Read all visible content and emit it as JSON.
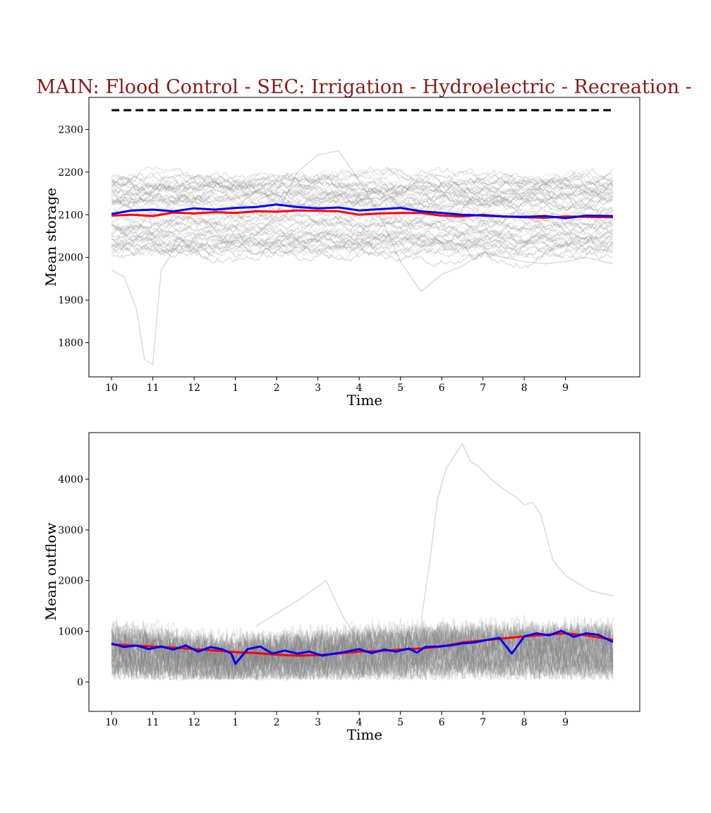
{
  "figure": {
    "title": "MAIN: Flood Control - SEC: Irrigation - Hydroelectric - Recreation -"
  },
  "colors": {
    "title": "#8b1a1a",
    "ensemble": "#808080",
    "mean_line": "#ff0000",
    "highlight_line": "#0000ff",
    "capacity_line": "#000000"
  },
  "chart_data": [
    {
      "type": "line",
      "xlabel": "Time",
      "ylabel": "Mean storage",
      "xlim": [
        -0.55,
        12.8
      ],
      "ylim": [
        1720,
        2375
      ],
      "x_ticks": [
        0,
        1,
        2,
        3,
        4,
        5,
        6,
        7,
        8,
        9,
        10,
        11
      ],
      "x_tick_labels": [
        "10",
        "11",
        "12",
        "1",
        "2",
        "3",
        "4",
        "5",
        "6",
        "7",
        "8",
        "9"
      ],
      "y_ticks": [
        1800,
        1900,
        2000,
        2100,
        2200,
        2300
      ],
      "y_tick_labels": [
        "1800",
        "1900",
        "2000",
        "2100",
        "2200",
        "2300"
      ],
      "x_range": [
        0,
        12.15
      ],
      "capacity_level": 2345,
      "ensemble_count": 60,
      "ensemble_band": [
        1960,
        2230
      ],
      "ensemble_center": 2100,
      "series": [
        {
          "role": "mean",
          "color": "#ff0000",
          "x": [
            0,
            0.5,
            1,
            1.5,
            2,
            2.5,
            3,
            3.5,
            4,
            4.5,
            5,
            5.5,
            6,
            6.5,
            7,
            7.5,
            8,
            8.5,
            9,
            9.5,
            10,
            10.5,
            11,
            11.5,
            12.15
          ],
          "y": [
            2098,
            2100,
            2097,
            2105,
            2103,
            2106,
            2104,
            2108,
            2107,
            2110,
            2109,
            2108,
            2100,
            2103,
            2104,
            2104,
            2098,
            2096,
            2100,
            2096,
            2094,
            2093,
            2096,
            2095,
            2094
          ]
        },
        {
          "role": "highlight",
          "color": "#0000ff",
          "x": [
            0,
            0.5,
            1,
            1.5,
            2,
            2.5,
            3,
            3.5,
            4,
            4.5,
            5,
            5.5,
            6,
            6.5,
            7,
            7.5,
            8,
            8.5,
            9,
            9.5,
            10,
            10.5,
            11,
            11.5,
            12.15
          ],
          "y": [
            2102,
            2110,
            2112,
            2108,
            2115,
            2112,
            2116,
            2118,
            2124,
            2118,
            2115,
            2117,
            2110,
            2113,
            2116,
            2108,
            2104,
            2100,
            2098,
            2096,
            2095,
            2097,
            2092,
            2098,
            2097
          ]
        }
      ],
      "outliers": [
        {
          "x": [
            0,
            0.3,
            0.6,
            0.8,
            1.0,
            1.2,
            1.4,
            1.6,
            2.0,
            2.5,
            3.0
          ],
          "y": [
            1970,
            1955,
            1880,
            1760,
            1750,
            1970,
            2000,
            2050,
            2010,
            2030,
            2040
          ]
        },
        {
          "x": [
            3.5,
            4.0,
            4.5,
            5.0,
            5.5,
            6.0,
            6.5,
            7.0,
            7.5,
            8.0,
            8.5,
            9.0,
            9.5,
            10.0,
            10.5,
            11.0,
            11.5,
            12.15
          ],
          "y": [
            2050,
            2100,
            2200,
            2240,
            2250,
            2180,
            2100,
            1990,
            1920,
            1960,
            1980,
            2010,
            2000,
            1990,
            1985,
            1990,
            2000,
            1985
          ]
        }
      ]
    },
    {
      "type": "line",
      "xlabel": "Time",
      "ylabel": "Mean outflow",
      "xlim": [
        -0.55,
        12.8
      ],
      "ylim": [
        -580,
        4920
      ],
      "x_ticks": [
        0,
        1,
        2,
        3,
        4,
        5,
        6,
        7,
        8,
        9,
        10,
        11
      ],
      "x_tick_labels": [
        "10",
        "11",
        "12",
        "1",
        "2",
        "3",
        "4",
        "5",
        "6",
        "7",
        "8",
        "9"
      ],
      "y_ticks": [
        0,
        1000,
        2000,
        3000,
        4000
      ],
      "y_tick_labels": [
        "0",
        "1000",
        "2000",
        "3000",
        "4000"
      ],
      "x_range": [
        0,
        12.15
      ],
      "ensemble_count": 60,
      "series": [
        {
          "role": "mean",
          "color": "#ff0000",
          "x": [
            0,
            0.5,
            1,
            1.5,
            2,
            2.5,
            3,
            3.5,
            4,
            4.5,
            5,
            5.5,
            6,
            6.5,
            7,
            7.5,
            8,
            8.5,
            9,
            9.5,
            10,
            10.5,
            11,
            11.5,
            12.15
          ],
          "y": [
            740,
            720,
            700,
            680,
            650,
            620,
            590,
            570,
            540,
            520,
            530,
            560,
            600,
            610,
            640,
            660,
            700,
            780,
            820,
            860,
            900,
            930,
            960,
            920,
            830
          ]
        },
        {
          "role": "highlight",
          "color": "#0000ff",
          "x": [
            0,
            0.3,
            0.6,
            0.9,
            1.2,
            1.5,
            1.8,
            2.1,
            2.4,
            2.7,
            2.9,
            3.0,
            3.3,
            3.6,
            3.9,
            4.2,
            4.5,
            4.8,
            5.1,
            5.4,
            5.7,
            6.0,
            6.3,
            6.6,
            6.9,
            7.2,
            7.4,
            7.6,
            7.9,
            8.2,
            8.5,
            8.8,
            9.1,
            9.4,
            9.7,
            10.0,
            10.3,
            10.6,
            10.9,
            11.2,
            11.5,
            11.8,
            12.15
          ],
          "y": [
            760,
            690,
            720,
            650,
            700,
            640,
            720,
            600,
            690,
            640,
            560,
            360,
            650,
            700,
            560,
            620,
            560,
            600,
            520,
            560,
            600,
            650,
            570,
            640,
            600,
            660,
            580,
            690,
            700,
            720,
            760,
            780,
            830,
            870,
            560,
            900,
            960,
            920,
            1010,
            890,
            960,
            930,
            790
          ]
        }
      ],
      "outliers": [
        {
          "x": [
            7.5,
            7.7,
            7.9,
            8.1,
            8.3,
            8.5,
            8.7,
            8.9,
            9.2,
            9.5,
            9.8,
            10.0,
            10.2,
            10.4,
            10.7,
            11.0,
            11.3,
            11.6,
            12.15
          ],
          "y": [
            1200,
            2300,
            3600,
            4200,
            4450,
            4700,
            4350,
            4250,
            4000,
            3800,
            3650,
            3500,
            3550,
            3300,
            2400,
            2100,
            1950,
            1800,
            1700
          ]
        },
        {
          "x": [
            3.5,
            4.5,
            5.2,
            5.6,
            6.0
          ],
          "y": [
            1100,
            1600,
            2000,
            1300,
            800
          ]
        }
      ]
    }
  ]
}
